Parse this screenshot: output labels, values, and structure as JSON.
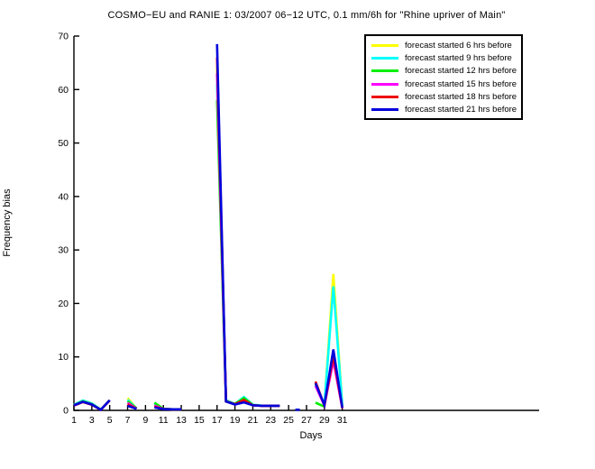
{
  "title": "COSMO−EU and RANIE 1: 03/2007 06−12 UTC, 0.1 mm/6h for \"Rhine upriver of Main\"",
  "chart_data": {
    "type": "line",
    "title": "COSMO−EU and RANIE 1: 03/2007 06−12 UTC, 0.1 mm/6h for \"Rhine upriver of Main\"",
    "xlabel": "Days",
    "ylabel": "Frequency bias",
    "xlim": [
      1,
      53
    ],
    "ylim": [
      0,
      70
    ],
    "xticks": [
      1,
      3,
      5,
      7,
      9,
      11,
      13,
      15,
      17,
      19,
      21,
      23,
      25,
      27,
      29,
      31
    ],
    "yticks": [
      0,
      10,
      20,
      30,
      40,
      50,
      60,
      70
    ],
    "grid": false,
    "legend_position": "top-right",
    "note": "Gaps between segments are days with no data; each segment lists [day, frequency-bias] points",
    "series": [
      {
        "name": "forecast started 6 hrs before",
        "color": "#ffff00",
        "segments": [
          [
            [
              1,
              0.95
            ],
            [
              2,
              1.65
            ],
            [
              3,
              1.15
            ],
            [
              4,
              0.15
            ],
            [
              5,
              1.9
            ]
          ],
          [
            [
              7,
              2.3
            ],
            [
              8,
              0.35
            ]
          ],
          [
            [
              10,
              1.1
            ],
            [
              11,
              0.25
            ],
            [
              12,
              0.2
            ],
            [
              13,
              0.2
            ]
          ],
          [
            [
              17,
              64
            ],
            [
              18,
              1.65
            ],
            [
              19,
              1.15
            ],
            [
              20,
              2.1
            ],
            [
              21,
              1.0
            ],
            [
              22,
              0.85
            ],
            [
              23,
              0.85
            ],
            [
              24,
              0.85
            ]
          ],
          [
            [
              28,
              4.9
            ],
            [
              29,
              1.0
            ],
            [
              30,
              25.5
            ],
            [
              31,
              0.8
            ]
          ]
        ]
      },
      {
        "name": "forecast started 9 hrs before",
        "color": "#00ffff",
        "segments": [
          [
            [
              1,
              1.05
            ],
            [
              2,
              1.85
            ],
            [
              3,
              1.3
            ],
            [
              4,
              0.15
            ],
            [
              5,
              1.9
            ]
          ],
          [
            [
              7,
              2.0
            ],
            [
              8,
              0.35
            ]
          ],
          [
            [
              10,
              1.25
            ],
            [
              11,
              0.25
            ],
            [
              12,
              0.2
            ],
            [
              13,
              0.2
            ]
          ],
          [
            [
              17,
              61
            ],
            [
              18,
              1.9
            ],
            [
              19,
              1.2
            ],
            [
              20,
              2.5
            ],
            [
              21,
              1.05
            ],
            [
              22,
              0.9
            ],
            [
              23,
              0.85
            ],
            [
              24,
              0.85
            ]
          ],
          [
            [
              28,
              4.7
            ],
            [
              29,
              1.1
            ],
            [
              30,
              23.2
            ],
            [
              31,
              0.9
            ]
          ]
        ]
      },
      {
        "name": "forecast started 12 hrs before",
        "color": "#00ee00",
        "segments": [
          [
            [
              1,
              1.0
            ],
            [
              2,
              1.7
            ],
            [
              3,
              1.2
            ],
            [
              4,
              0.15
            ],
            [
              5,
              1.9
            ]
          ],
          [
            [
              7,
              1.7
            ],
            [
              8,
              0.35
            ]
          ],
          [
            [
              10,
              1.45
            ],
            [
              11,
              0.3
            ],
            [
              12,
              0.2
            ],
            [
              13,
              0.2
            ]
          ],
          [
            [
              17,
              58
            ],
            [
              18,
              1.75
            ],
            [
              19,
              1.2
            ],
            [
              20,
              2.3
            ],
            [
              21,
              1.0
            ],
            [
              22,
              0.85
            ],
            [
              23,
              0.85
            ],
            [
              24,
              0.85
            ]
          ],
          [
            [
              28,
              1.45
            ],
            [
              29,
              0.7
            ]
          ]
        ]
      },
      {
        "name": "forecast started 15 hrs before",
        "color": "#ff00ff",
        "segments": [
          [
            [
              1,
              0.95
            ],
            [
              2,
              1.6
            ],
            [
              3,
              1.1
            ],
            [
              4,
              0.1
            ],
            [
              5,
              1.9
            ]
          ],
          [
            [
              7,
              1.4
            ],
            [
              8,
              0.3
            ]
          ],
          [
            [
              10,
              0.9
            ],
            [
              11,
              0.25
            ],
            [
              12,
              0.2
            ],
            [
              13,
              0.2
            ]
          ],
          [
            [
              17,
              63
            ],
            [
              18,
              1.7
            ],
            [
              19,
              1.1
            ],
            [
              20,
              1.75
            ],
            [
              21,
              0.95
            ],
            [
              22,
              0.85
            ],
            [
              23,
              0.85
            ],
            [
              24,
              0.85
            ]
          ],
          [
            [
              28,
              4.6
            ],
            [
              29,
              0.9
            ],
            [
              30,
              9.3
            ],
            [
              31,
              0.4
            ]
          ]
        ]
      },
      {
        "name": "forecast started 18 hrs before",
        "color": "#ee0000",
        "segments": [
          [
            [
              1,
              0.9
            ],
            [
              2,
              1.55
            ],
            [
              3,
              1.05
            ],
            [
              4,
              0.1
            ],
            [
              5,
              1.85
            ]
          ],
          [
            [
              7,
              1.1
            ],
            [
              8,
              0.3
            ]
          ],
          [
            [
              10,
              0.7
            ],
            [
              11,
              0.25
            ],
            [
              12,
              0.2
            ],
            [
              13,
              0.2
            ]
          ],
          [
            [
              17,
              66
            ],
            [
              18,
              1.7
            ],
            [
              19,
              1.15
            ],
            [
              20,
              1.95
            ],
            [
              21,
              0.95
            ],
            [
              22,
              0.85
            ],
            [
              23,
              0.85
            ],
            [
              24,
              0.85
            ]
          ],
          [
            [
              28,
              5.4
            ],
            [
              29,
              0.9
            ],
            [
              30,
              10.2
            ],
            [
              31,
              0.45
            ]
          ]
        ]
      },
      {
        "name": "forecast started 21 hrs before",
        "color": "#0000dd",
        "segments": [
          [
            [
              1,
              0.95
            ],
            [
              2,
              1.6
            ],
            [
              3,
              1.1
            ],
            [
              4,
              0.1
            ],
            [
              5,
              1.9
            ]
          ],
          [
            [
              7,
              0.85
            ],
            [
              8,
              0.3
            ]
          ],
          [
            [
              10,
              0.55
            ],
            [
              11,
              0.25
            ],
            [
              12,
              0.2
            ],
            [
              13,
              0.2
            ]
          ],
          [
            [
              17,
              68.5
            ],
            [
              18,
              1.65
            ],
            [
              19,
              1.1
            ],
            [
              20,
              1.5
            ],
            [
              21,
              0.95
            ],
            [
              22,
              0.85
            ],
            [
              23,
              0.85
            ],
            [
              24,
              0.85
            ]
          ],
          [
            [
              26,
              0.12
            ]
          ],
          [
            [
              28,
              5.1
            ],
            [
              29,
              1.0
            ],
            [
              30,
              11.4
            ],
            [
              31,
              0.5
            ]
          ]
        ]
      }
    ]
  }
}
